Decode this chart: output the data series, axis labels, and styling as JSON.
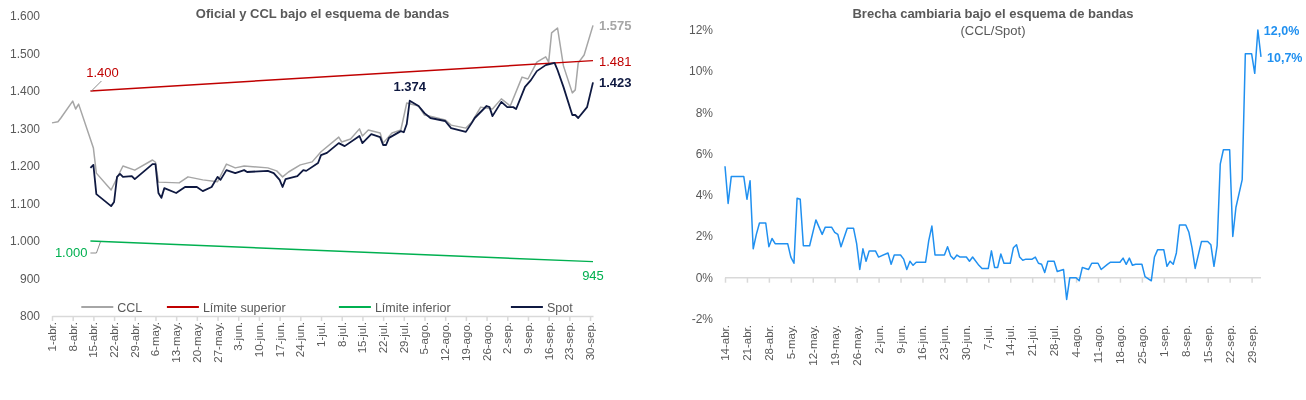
{
  "chart_data": [
    {
      "type": "line",
      "title": "Oficial y CCL bajo el esquema de bandas",
      "legend": "bottom",
      "grid": false,
      "xlim": [
        "--04-01",
        "--10-01"
      ],
      "xticks": [
        {
          "value": "--04-01",
          "label": "1-abr."
        },
        {
          "value": "--04-08",
          "label": "8-abr."
        },
        {
          "value": "--04-15",
          "label": "15-abr."
        },
        {
          "value": "--04-22",
          "label": "22-abr."
        },
        {
          "value": "--04-29",
          "label": "29-abr."
        },
        {
          "value": "--05-06",
          "label": "6-may."
        },
        {
          "value": "--05-13",
          "label": "13-may."
        },
        {
          "value": "--05-20",
          "label": "20-may."
        },
        {
          "value": "--05-27",
          "label": "27-may."
        },
        {
          "value": "--06-03",
          "label": "3-jun."
        },
        {
          "value": "--06-10",
          "label": "10-jun."
        },
        {
          "value": "--06-17",
          "label": "17-jun."
        },
        {
          "value": "--06-24",
          "label": "24-jun."
        },
        {
          "value": "--07-01",
          "label": "1-jul."
        },
        {
          "value": "--07-08",
          "label": "8-jul."
        },
        {
          "value": "--07-15",
          "label": "15-jul."
        },
        {
          "value": "--07-22",
          "label": "22-jul."
        },
        {
          "value": "--07-29",
          "label": "29-jul."
        },
        {
          "value": "--08-05",
          "label": "5-ago."
        },
        {
          "value": "--08-12",
          "label": "12-ago."
        },
        {
          "value": "--08-19",
          "label": "19-ago."
        },
        {
          "value": "--08-26",
          "label": "26-ago."
        },
        {
          "value": "--09-02",
          "label": "2-sep."
        },
        {
          "value": "--09-09",
          "label": "9-sep."
        },
        {
          "value": "--09-16",
          "label": "16-sep."
        },
        {
          "value": "--09-23",
          "label": "23-sep."
        },
        {
          "value": "--09-30",
          "label": "30-sep."
        }
      ],
      "ylim": [
        800,
        1600
      ],
      "yticks": [
        800,
        900,
        {
          "value": 1000,
          "label": "1.000"
        },
        {
          "value": 1100,
          "label": "1.100"
        },
        {
          "value": 1200,
          "label": "1.200"
        },
        {
          "value": 1300,
          "label": "1.300"
        },
        {
          "value": 1400,
          "label": "1.400"
        },
        {
          "value": 1500,
          "label": "1.500"
        },
        {
          "value": 1600,
          "label": "1.600"
        }
      ],
      "series": [
        {
          "name": "CCL",
          "color": "#a6a6a6",
          "x": [
            "--04-01",
            "--04-03",
            "--04-04",
            "--04-08",
            "--04-09",
            "--04-10",
            "--04-15",
            "--04-16",
            "--04-21",
            "--04-25",
            "--04-29",
            "--05-05",
            "--05-06",
            "--05-07",
            "--05-14",
            "--05-17",
            "--05-22",
            "--05-27",
            "--05-30",
            "--06-02",
            "--06-05",
            "--06-13",
            "--06-16",
            "--06-18",
            "--06-20",
            "--06-24",
            "--06-28",
            "--07-01",
            "--07-07",
            "--07-08",
            "--07-11",
            "--07-14",
            "--07-15",
            "--07-17",
            "--07-21",
            "--07-22",
            "--07-25",
            "--07-28",
            "--07-30",
            "--08-03",
            "--08-05",
            "--08-08",
            "--08-12",
            "--08-14",
            "--08-19",
            "--08-21",
            "--08-24",
            "--08-28",
            "--08-31",
            "--09-03",
            "--09-07",
            "--09-09",
            "--09-12",
            "--09-15",
            "--09-16",
            "--09-17",
            "--09-19",
            "--09-21",
            "--09-24",
            "--09-25",
            "--09-26",
            "--09-28",
            "--10-01"
          ],
          "values": [
            1315,
            1318,
            1328,
            1373,
            1352,
            1365,
            1248,
            1181,
            1136,
            1200,
            1189,
            1216,
            1210,
            1157,
            1155,
            1171,
            1163,
            1158,
            1205,
            1195,
            1200,
            1195,
            1187,
            1171,
            1184,
            1203,
            1211,
            1238,
            1277,
            1264,
            1272,
            1299,
            1280,
            1296,
            1288,
            1261,
            1288,
            1296,
            1368,
            1360,
            1336,
            1331,
            1323,
            1309,
            1301,
            1317,
            1357,
            1352,
            1379,
            1360,
            1437,
            1432,
            1477,
            1491,
            1477,
            1555,
            1568,
            1467,
            1395,
            1403,
            1475,
            1496,
            1575
          ],
          "value_labels": [
            null,
            null,
            null,
            null,
            null,
            null,
            null,
            null,
            null,
            null,
            null,
            null,
            null,
            null,
            null,
            null,
            null,
            null,
            null,
            null,
            null,
            null,
            null,
            null,
            null,
            null,
            null,
            null,
            null,
            null,
            null,
            null,
            null,
            null,
            null,
            null,
            null,
            null,
            null,
            null,
            null,
            null,
            null,
            null,
            null,
            null,
            null,
            null,
            null,
            null,
            null,
            null,
            null,
            null,
            null,
            null,
            null,
            null,
            null,
            null,
            null,
            null,
            "1.575"
          ]
        },
        {
          "name": "Límite superior",
          "color": "#c00000",
          "x": [
            "--04-14",
            "--10-01"
          ],
          "values": [
            1400,
            1481
          ],
          "value_labels": [
            "1.400",
            "1.481"
          ]
        },
        {
          "name": "Límite inferior",
          "color": "#00b050",
          "x": [
            "--04-14",
            "--10-01"
          ],
          "values": [
            1000,
            945
          ],
          "value_labels": [
            "1.000",
            "945"
          ]
        },
        {
          "name": "Spot",
          "color": "#0f1941",
          "x": [
            "--04-14",
            "--04-15",
            "--04-16",
            "--04-21",
            "--04-22",
            "--04-23",
            "--04-24",
            "--04-25",
            "--04-28",
            "--04-29",
            "--05-05",
            "--05-06",
            "--05-07",
            "--05-08",
            "--05-09",
            "--05-13",
            "--05-16",
            "--05-20",
            "--05-22",
            "--05-25",
            "--05-27",
            "--05-28",
            "--05-30",
            "--06-02",
            "--06-05",
            "--06-06",
            "--06-13",
            "--06-15",
            "--06-17",
            "--06-18",
            "--06-19",
            "--06-23",
            "--06-25",
            "--06-26",
            "--06-30",
            "--07-01",
            "--07-03",
            "--07-07",
            "--07-09",
            "--07-14",
            "--07-15",
            "--07-18",
            "--07-21",
            "--07-22",
            "--07-23",
            "--07-24",
            "--07-28",
            "--07-29",
            "--07-30",
            "--07-31",
            "--08-03",
            "--08-05",
            "--08-07",
            "--08-12",
            "--08-14",
            "--08-19",
            "--08-21",
            "--08-22",
            "--08-26",
            "--08-27",
            "--08-28",
            "--08-31",
            "--09-02",
            "--09-04",
            "--09-05",
            "--09-08",
            "--09-10",
            "--09-12",
            "--09-15",
            "--09-18",
            "--09-19",
            "--09-21",
            "--09-24",
            "--09-25",
            "--09-26",
            "--09-29",
            "--10-01"
          ],
          "values": [
            1195,
            1203,
            1125,
            1093,
            1104,
            1171,
            1179,
            1171,
            1173,
            1165,
            1205,
            1205,
            1128,
            1115,
            1141,
            1128,
            1144,
            1144,
            1133,
            1144,
            1171,
            1163,
            1189,
            1181,
            1189,
            1184,
            1187,
            1181,
            1163,
            1144,
            1165,
            1173,
            1189,
            1187,
            1208,
            1229,
            1235,
            1261,
            1253,
            1280,
            1261,
            1285,
            1277,
            1256,
            1256,
            1275,
            1293,
            1290,
            1312,
            1374,
            1360,
            1341,
            1328,
            1320,
            1301,
            1291,
            1315,
            1328,
            1360,
            1357,
            1333,
            1371,
            1357,
            1357,
            1352,
            1411,
            1429,
            1453,
            1469,
            1475,
            1456,
            1411,
            1336,
            1336,
            1328,
            1357,
            1423
          ],
          "value_labels": [
            null,
            null,
            null,
            null,
            null,
            null,
            null,
            null,
            null,
            null,
            null,
            null,
            null,
            null,
            null,
            null,
            null,
            null,
            null,
            null,
            null,
            null,
            null,
            null,
            null,
            null,
            null,
            null,
            null,
            null,
            null,
            null,
            null,
            null,
            null,
            null,
            null,
            null,
            null,
            null,
            null,
            null,
            null,
            null,
            null,
            null,
            null,
            null,
            null,
            "1.374",
            null,
            null,
            null,
            null,
            null,
            null,
            null,
            null,
            null,
            null,
            null,
            null,
            null,
            null,
            null,
            null,
            null,
            null,
            null,
            null,
            null,
            null,
            null,
            null,
            null,
            null,
            "1.423"
          ]
        }
      ]
    },
    {
      "type": "line",
      "title": "Brecha cambiaria bajo el esquema de bandas",
      "subtitle": "(CCL/Spot)",
      "grid": false,
      "xlim": [
        "--04-14",
        "--10-02"
      ],
      "xticks": [
        {
          "value": "--04-14",
          "label": "14-abr."
        },
        {
          "value": "--04-21",
          "label": "21-abr."
        },
        {
          "value": "--04-28",
          "label": "28-abr."
        },
        {
          "value": "--05-05",
          "label": "5-may."
        },
        {
          "value": "--05-12",
          "label": "12-may."
        },
        {
          "value": "--05-19",
          "label": "19-may."
        },
        {
          "value": "--05-26",
          "label": "26-may."
        },
        {
          "value": "--06-02",
          "label": "2-jun."
        },
        {
          "value": "--06-09",
          "label": "9-jun."
        },
        {
          "value": "--06-16",
          "label": "16-jun."
        },
        {
          "value": "--06-23",
          "label": "23-jun."
        },
        {
          "value": "--06-30",
          "label": "30-jun."
        },
        {
          "value": "--07-07",
          "label": "7-jul."
        },
        {
          "value": "--07-14",
          "label": "14-jul."
        },
        {
          "value": "--07-21",
          "label": "21-jul."
        },
        {
          "value": "--07-28",
          "label": "28-jul."
        },
        {
          "value": "--08-04",
          "label": "4-ago."
        },
        {
          "value": "--08-11",
          "label": "11-ago."
        },
        {
          "value": "--08-18",
          "label": "18-ago."
        },
        {
          "value": "--08-25",
          "label": "25-ago."
        },
        {
          "value": "--09-01",
          "label": "1-sep."
        },
        {
          "value": "--09-08",
          "label": "8-sep."
        },
        {
          "value": "--09-15",
          "label": "15-sep."
        },
        {
          "value": "--09-22",
          "label": "22-sep."
        },
        {
          "value": "--09-29",
          "label": "29-sep."
        }
      ],
      "ylim": [
        -2,
        12
      ],
      "yticks": [
        {
          "value": -2,
          "label": "-2%"
        },
        {
          "value": 0,
          "label": "0%"
        },
        {
          "value": 2,
          "label": "2%"
        },
        {
          "value": 4,
          "label": "4%"
        },
        {
          "value": 6,
          "label": "6%"
        },
        {
          "value": 8,
          "label": "8%"
        },
        {
          "value": 10,
          "label": "10%"
        },
        {
          "value": 12,
          "label": "12%"
        }
      ],
      "ref_lines": [
        {
          "axis": "y",
          "value": 0,
          "color": "#d9d9d9"
        }
      ],
      "annotations": [
        {
          "text": "12,0%",
          "x": "--10-01",
          "y": 12.0
        },
        {
          "text": "10,7%",
          "x": "--10-02",
          "y": 10.7
        }
      ],
      "series": [
        {
          "color": "#2090f0",
          "x": [
            "--04-14",
            "--04-15",
            "--04-16",
            "--04-20",
            "--04-21",
            "--04-22",
            "--04-23",
            "--04-24",
            "--04-25",
            "--04-27",
            "--04-28",
            "--04-29",
            "--04-30",
            "--05-04",
            "--05-05",
            "--05-06",
            "--05-07",
            "--05-08",
            "--05-09",
            "--05-11",
            "--05-13",
            "--05-15",
            "--05-16",
            "--05-18",
            "--05-19",
            "--05-20",
            "--05-21",
            "--05-23",
            "--05-25",
            "--05-26",
            "--05-27",
            "--05-28",
            "--05-29",
            "--05-30",
            "--06-01",
            "--06-02",
            "--06-05",
            "--06-06",
            "--06-07",
            "--06-09",
            "--06-10",
            "--06-11",
            "--06-12",
            "--06-13",
            "--06-14",
            "--06-17",
            "--06-18",
            "--06-19",
            "--06-20",
            "--06-23",
            "--06-24",
            "--06-25",
            "--06-26",
            "--06-27",
            "--06-28",
            "--06-30",
            "--07-01",
            "--07-02",
            "--07-04",
            "--07-05",
            "--07-07",
            "--07-08",
            "--07-09",
            "--07-10",
            "--07-11",
            "--07-12",
            "--07-14",
            "--07-15",
            "--07-16",
            "--07-17",
            "--07-18",
            "--07-19",
            "--07-21",
            "--07-22",
            "--07-23",
            "--07-24",
            "--07-25",
            "--07-26",
            "--07-28",
            "--07-29",
            "--07-31",
            "--08-01",
            "--08-02",
            "--08-04",
            "--08-05",
            "--08-06",
            "--08-07",
            "--08-08",
            "--08-09",
            "--08-11",
            "--08-12",
            "--08-14",
            "--08-15",
            "--08-18",
            "--08-19",
            "--08-20",
            "--08-21",
            "--08-22",
            "--08-23",
            "--08-25",
            "--08-26",
            "--08-28",
            "--08-29",
            "--08-30",
            "--09-01",
            "--09-02",
            "--09-03",
            "--09-04",
            "--09-05",
            "--09-06",
            "--09-08",
            "--09-09",
            "--09-10",
            "--09-11",
            "--09-13",
            "--09-15",
            "--09-16",
            "--09-17",
            "--09-18",
            "--09-19",
            "--09-20",
            "--09-22",
            "--09-23",
            "--09-24",
            "--09-26",
            "--09-27",
            "--09-29",
            "--09-30",
            "--10-01",
            "--10-02"
          ],
          "values": [
            5.4,
            3.6,
            4.9,
            4.9,
            3.8,
            4.7,
            1.4,
            2.1,
            2.65,
            2.65,
            1.5,
            1.9,
            1.65,
            1.65,
            1.0,
            0.7,
            3.85,
            3.8,
            1.55,
            1.55,
            2.8,
            2.1,
            2.45,
            2.45,
            2.2,
            2.1,
            1.5,
            2.4,
            2.4,
            1.65,
            0.4,
            1.4,
            0.8,
            1.3,
            1.3,
            1.0,
            1.2,
            0.65,
            1.1,
            1.1,
            0.9,
            0.4,
            0.8,
            0.6,
            0.75,
            0.75,
            1.8,
            2.5,
            1.1,
            1.1,
            1.5,
            1.05,
            0.9,
            1.1,
            1.0,
            1.0,
            0.8,
            1.0,
            0.6,
            0.45,
            0.45,
            1.3,
            0.5,
            0.5,
            1.15,
            0.7,
            0.7,
            1.45,
            1.6,
            1.0,
            0.85,
            0.9,
            0.9,
            1.0,
            0.7,
            0.65,
            0.25,
            0.8,
            0.8,
            0.3,
            0.4,
            -1.05,
            0.0,
            0.0,
            -0.15,
            0.5,
            0.45,
            0.4,
            0.7,
            0.7,
            0.4,
            0.65,
            0.75,
            0.75,
            0.95,
            0.65,
            0.95,
            0.6,
            0.65,
            0.65,
            0.05,
            -0.15,
            1.0,
            1.35,
            1.35,
            0.55,
            0.8,
            0.65,
            1.2,
            2.55,
            2.55,
            2.2,
            1.45,
            0.45,
            1.75,
            1.75,
            1.6,
            0.55,
            1.55,
            5.5,
            6.2,
            6.2,
            2.0,
            3.4,
            4.75,
            10.85,
            10.85,
            9.9,
            12.0,
            10.7
          ]
        }
      ]
    }
  ]
}
